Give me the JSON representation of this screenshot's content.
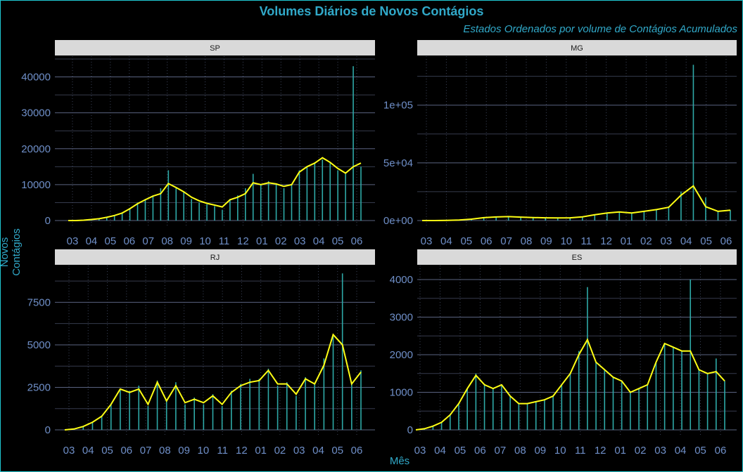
{
  "title": "Volumes Diários de Novos Contágios",
  "subtitle": "Estados Ordenados por volume de Contágios Acumulados",
  "ylabel": "Novos Contágios",
  "xlabel": "Mês",
  "colors": {
    "background": "#000000",
    "title": "#31a9c9",
    "bars": "#2ea9a7",
    "moving_average": "#ffff14",
    "strip": "#d9d9d9",
    "ticks": "#6f8fc8"
  },
  "chart_data": [
    {
      "type": "bar",
      "facet": "SP",
      "x_ticks": [
        "03",
        "04",
        "05",
        "06",
        "07",
        "08",
        "09",
        "10",
        "11",
        "12",
        "01",
        "02",
        "03",
        "04",
        "05",
        "06"
      ],
      "y_ticks": [
        "0",
        "10000",
        "20000",
        "30000",
        "40000"
      ],
      "ylim": [
        0,
        45000
      ],
      "series": [
        {
          "name": "daily",
          "values": [
            0,
            0,
            100,
            300,
            500,
            900,
            1400,
            2200,
            3500,
            5000,
            6000,
            7000,
            9000,
            14000,
            9000,
            8000,
            6000,
            5000,
            4500,
            4000,
            3000,
            6000,
            7000,
            9000,
            13000,
            10000,
            11000,
            10000,
            9000,
            10000,
            14000,
            15000,
            16000,
            17000,
            16000,
            14000,
            13000,
            43000,
            15000
          ]
        },
        {
          "name": "moving_average",
          "values": [
            0,
            0,
            100,
            300,
            500,
            900,
            1400,
            2100,
            3300,
            4700,
            5800,
            6800,
            7500,
            10300,
            9200,
            8000,
            6500,
            5500,
            4800,
            4300,
            3800,
            5800,
            6500,
            7500,
            10500,
            10000,
            10500,
            10200,
            9500,
            10000,
            13500,
            15000,
            16000,
            17500,
            16200,
            14500,
            13200,
            15000,
            16000
          ]
        }
      ]
    },
    {
      "type": "bar",
      "facet": "MG",
      "x_ticks": [
        "03",
        "04",
        "05",
        "06",
        "07",
        "08",
        "09",
        "10",
        "11",
        "12",
        "01",
        "02",
        "03",
        "04",
        "05",
        "06"
      ],
      "y_ticks": [
        "0e+00",
        "5e+04",
        "1e+05"
      ],
      "ylim": [
        0,
        140000
      ],
      "series": [
        {
          "name": "daily",
          "values": [
            0,
            0,
            200,
            500,
            1200,
            2500,
            3200,
            3500,
            3000,
            2600,
            2400,
            2300,
            2400,
            3200,
            5000,
            6500,
            7500,
            6500,
            8000,
            9500,
            12000,
            25000,
            135000,
            20000,
            8000,
            9000
          ]
        },
        {
          "name": "moving_average",
          "values": [
            0,
            0,
            200,
            500,
            1200,
            2500,
            3100,
            3400,
            3000,
            2600,
            2400,
            2300,
            2400,
            3200,
            5000,
            6500,
            7500,
            6500,
            8000,
            9500,
            11500,
            22000,
            30000,
            12000,
            8000,
            9000
          ]
        }
      ]
    },
    {
      "type": "bar",
      "facet": "RJ",
      "x_ticks": [
        "03",
        "04",
        "05",
        "06",
        "07",
        "08",
        "09",
        "10",
        "11",
        "12",
        "01",
        "02",
        "03",
        "04",
        "05",
        "06"
      ],
      "y_ticks": [
        "0",
        "2500",
        "5000",
        "7500"
      ],
      "ylim": [
        0,
        9500
      ],
      "series": [
        {
          "name": "daily",
          "values": [
            0,
            50,
            200,
            450,
            800,
            1500,
            2400,
            2300,
            2600,
            1400,
            2900,
            1700,
            2800,
            1500,
            1900,
            1500,
            2100,
            1400,
            2300,
            2700,
            3000,
            3000,
            3600,
            2600,
            2800,
            2000,
            3100,
            2700,
            4200,
            5500,
            9200,
            2700,
            3500
          ]
        },
        {
          "name": "moving_average",
          "values": [
            0,
            50,
            200,
            450,
            800,
            1500,
            2400,
            2200,
            2400,
            1500,
            2800,
            1700,
            2600,
            1600,
            1800,
            1600,
            2000,
            1500,
            2200,
            2600,
            2800,
            2900,
            3500,
            2700,
            2700,
            2100,
            3000,
            2700,
            3800,
            5600,
            5000,
            2700,
            3400
          ]
        }
      ]
    },
    {
      "type": "bar",
      "facet": "ES",
      "x_ticks": [
        "03",
        "04",
        "05",
        "06",
        "07",
        "08",
        "09",
        "10",
        "11",
        "12",
        "01",
        "02",
        "03",
        "04",
        "05",
        "06"
      ],
      "y_ticks": [
        "0",
        "1000",
        "2000",
        "3000",
        "4000"
      ],
      "ylim": [
        0,
        4300
      ],
      "series": [
        {
          "name": "daily",
          "values": [
            0,
            30,
            100,
            200,
            400,
            700,
            1100,
            1500,
            1200,
            1100,
            1200,
            900,
            700,
            700,
            750,
            800,
            900,
            1200,
            1500,
            2100,
            3800,
            1800,
            1600,
            1400,
            1300,
            1000,
            1100,
            1200,
            1800,
            2300,
            2200,
            2100,
            4000,
            1600,
            1500,
            1900,
            1300
          ]
        },
        {
          "name": "moving_average",
          "values": [
            0,
            30,
            100,
            200,
            400,
            700,
            1100,
            1450,
            1200,
            1100,
            1200,
            900,
            700,
            700,
            750,
            800,
            900,
            1200,
            1500,
            2000,
            2400,
            1800,
            1600,
            1400,
            1300,
            1000,
            1100,
            1200,
            1800,
            2300,
            2200,
            2100,
            2100,
            1600,
            1500,
            1550,
            1300
          ]
        }
      ]
    }
  ]
}
